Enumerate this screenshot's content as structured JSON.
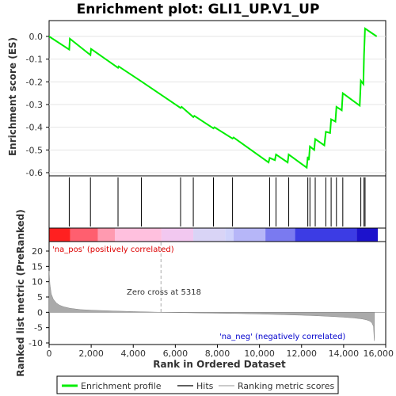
{
  "chart_data": [
    {
      "type": "line",
      "title": "Enrichment plot: GLI1_UP.V1_UP",
      "ylabel": "Enrichment score (ES)",
      "ylim": [
        -0.6,
        0.05
      ],
      "yticks": [
        -0.6,
        -0.5,
        -0.4,
        -0.3,
        -0.2,
        -0.1,
        0.0
      ],
      "ytick_labels": [
        "-0.6",
        "-0.5",
        "-0.4",
        "-0.3",
        "-0.2",
        "-0.1",
        "0.0"
      ],
      "xlim": [
        0,
        15500
      ],
      "color": "#00ee00",
      "series": [
        {
          "name": "Enrichment profile",
          "x": [
            0,
            950,
            980,
            1950,
            1980,
            3250,
            3280,
            4350,
            6200,
            6250,
            6800,
            6850,
            7750,
            7800,
            8650,
            8700,
            10350,
            10400,
            10650,
            10700,
            11250,
            11300,
            12150,
            12200,
            12250,
            12300,
            12500,
            12550,
            12980,
            13050,
            13250,
            13300,
            13500,
            13550,
            13800,
            13850,
            14650,
            14700,
            14820,
            14850,
            14900,
            15450
          ],
          "y": [
            0.0,
            -0.058,
            -0.01,
            -0.082,
            -0.055,
            -0.138,
            -0.132,
            -0.198,
            -0.315,
            -0.31,
            -0.355,
            -0.35,
            -0.405,
            -0.4,
            -0.45,
            -0.445,
            -0.555,
            -0.535,
            -0.545,
            -0.52,
            -0.555,
            -0.52,
            -0.578,
            -0.53,
            -0.545,
            -0.485,
            -0.5,
            -0.452,
            -0.48,
            -0.42,
            -0.425,
            -0.365,
            -0.375,
            -0.31,
            -0.325,
            -0.25,
            -0.305,
            -0.195,
            -0.21,
            -0.085,
            0.035,
            0.0
          ]
        }
      ]
    },
    {
      "type": "hits",
      "name": "Hits",
      "color": "#000000",
      "positions": [
        950,
        1950,
        3250,
        4350,
        6200,
        6800,
        7750,
        8650,
        10400,
        10700,
        11300,
        12200,
        12300,
        12550,
        13050,
        13300,
        13550,
        13850,
        14700,
        14850,
        14900
      ]
    },
    {
      "type": "heatmap",
      "name": "rank-gradient-band",
      "colors": [
        "#ff2020",
        "#ff5f6f",
        "#ff9ab0",
        "#ffc0de",
        "#f2c8f0",
        "#d9d4f6",
        "#cfd2fb",
        "#b6b6f8",
        "#7a7af0",
        "#3c3ce4",
        "#1c12cc",
        "#1200b4"
      ],
      "stops": [
        0,
        1000,
        2300,
        3100,
        5300,
        6800,
        8300,
        8700,
        10200,
        11600,
        14500,
        15500
      ]
    },
    {
      "type": "area",
      "ylabel": "Ranked list metric (PreRanked)",
      "xlabel": "Rank in Ordered Dataset",
      "ylim": [
        -10,
        20
      ],
      "yticks": [
        -10,
        -5,
        0,
        5,
        10,
        15,
        20
      ],
      "ytick_labels": [
        "-10",
        "-5",
        "0",
        "5",
        "10",
        "15",
        "20"
      ],
      "xlim": [
        0,
        16000
      ],
      "xticks": [
        0,
        2000,
        4000,
        6000,
        8000,
        10000,
        12000,
        14000,
        16000
      ],
      "xtick_labels": [
        "0",
        "2,000",
        "4,000",
        "6,000",
        "8,000",
        "10,000",
        "12,000",
        "14,000",
        "16,000"
      ],
      "color": "#aaaaaa",
      "series": [
        {
          "name": "Ranking metric scores",
          "x": [
            0,
            40,
            100,
            200,
            350,
            500,
            700,
            1000,
            1500,
            2000,
            3000,
            4000,
            5318,
            7000,
            9000,
            10000,
            11000,
            12000,
            12800,
            13500,
            14000,
            14500,
            14900,
            15100,
            15250,
            15350,
            15420,
            15450,
            15460
          ],
          "y": [
            13.5,
            9.0,
            6.0,
            4.3,
            3.0,
            2.3,
            1.8,
            1.3,
            0.9,
            0.7,
            0.45,
            0.25,
            0.0,
            -0.2,
            -0.4,
            -0.55,
            -0.75,
            -0.95,
            -1.15,
            -1.4,
            -1.6,
            -1.85,
            -2.2,
            -2.5,
            -2.9,
            -3.5,
            -4.6,
            -8.5,
            -9.3
          ]
        }
      ],
      "zero_cross_rank": 5318,
      "annotations": {
        "pos_label": "'na_pos' (positively correlated)",
        "neg_label": "'na_neg' (negatively correlated)",
        "zero_cross": "Zero cross at 5318"
      }
    }
  ],
  "legend": {
    "items": [
      {
        "label": "Enrichment profile",
        "color": "#00ee00"
      },
      {
        "label": "Hits",
        "color": "#000000"
      },
      {
        "label": "Ranking metric scores",
        "color": "#aaaaaa"
      }
    ]
  }
}
